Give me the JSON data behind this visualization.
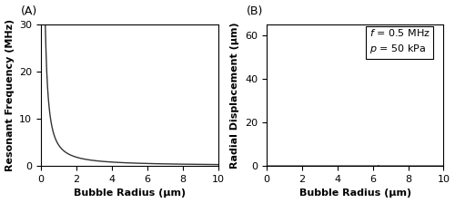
{
  "figsize": [
    5.0,
    2.24
  ],
  "dpi": 100,
  "background_color": "#ffffff",
  "panel_A": {
    "label": "(A)",
    "xlabel": "Bubble Radius (μm)",
    "ylabel": "Resonant Frequency (MHz)",
    "xlim": [
      0,
      10
    ],
    "ylim": [
      0,
      30
    ],
    "xticks": [
      0,
      2,
      4,
      6,
      8,
      10
    ],
    "yticks": [
      0,
      10,
      20,
      30
    ],
    "line_color": "#333333",
    "polytropic_kappa": 1.06,
    "p0": 101325,
    "rho": 1000,
    "sigma": 0.0728,
    "r_min": 3e-08,
    "r_max": 1e-05,
    "n_points": 3000
  },
  "panel_B": {
    "label": "(B)",
    "xlabel": "Bubble Radius (μm)",
    "ylabel": "Radial Displacement (μm)",
    "xlim": [
      0,
      10
    ],
    "ylim": [
      0,
      65
    ],
    "xticks": [
      0,
      2,
      4,
      6,
      8,
      10
    ],
    "yticks": [
      0,
      20,
      40,
      60
    ],
    "line_color": "#333333",
    "f_drive": 500000.0,
    "p_drive": 50000,
    "p0": 101325,
    "rho": 1000,
    "sigma": 0.0728,
    "polytropic_kappa": 1.06,
    "r_min": 3e-08,
    "r_max": 1e-05,
    "n_points": 8000,
    "annotation_line1": "$f$ = 0.5 MHz",
    "annotation_line2": "$p$ = 50 kPa",
    "annotation_fontsize": 8
  },
  "label_fontsize": 9,
  "tick_fontsize": 8,
  "axis_label_fontsize": 8,
  "axis_label_fontweight": "bold",
  "line_width": 1.0
}
